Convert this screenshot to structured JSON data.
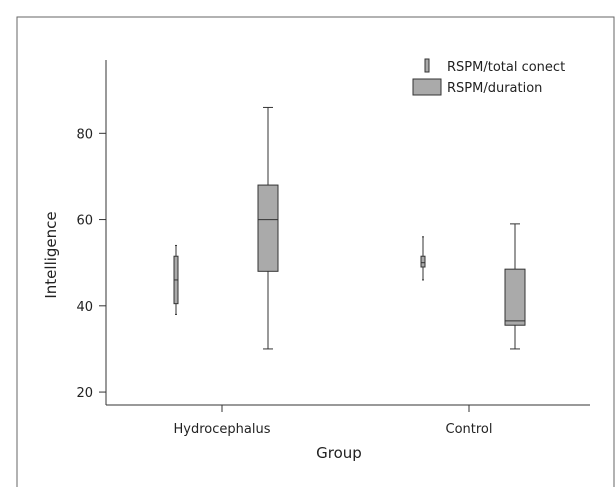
{
  "colors": {
    "box_fill": "#aaaaaa",
    "stroke": "#333333",
    "background": "#ffffff"
  },
  "chart_data": {
    "type": "box",
    "xlabel": "Group",
    "ylabel": "Intelligence",
    "categories": [
      "Hydrocephalus",
      "Control"
    ],
    "ylim": [
      17,
      97
    ],
    "yticks": [
      20,
      40,
      60,
      80
    ],
    "grid": false,
    "legend_position": "top-right",
    "series": [
      {
        "name": "RSPM/total conect",
        "box_style": "narrow",
        "boxes": [
          {
            "category": "Hydrocephalus",
            "min": 38,
            "q1": 40.5,
            "median": 46,
            "q3": 51.5,
            "max": 54
          },
          {
            "category": "Control",
            "min": 46,
            "q1": 49,
            "median": 50,
            "q3": 51.5,
            "max": 56
          }
        ]
      },
      {
        "name": "RSPM/duration",
        "box_style": "wide",
        "boxes": [
          {
            "category": "Hydrocephalus",
            "min": 30,
            "q1": 48,
            "median": 60,
            "q3": 68,
            "max": 86
          },
          {
            "category": "Control",
            "min": 30,
            "q1": 35.5,
            "median": 36.5,
            "q3": 48.5,
            "max": 59
          }
        ]
      }
    ]
  }
}
